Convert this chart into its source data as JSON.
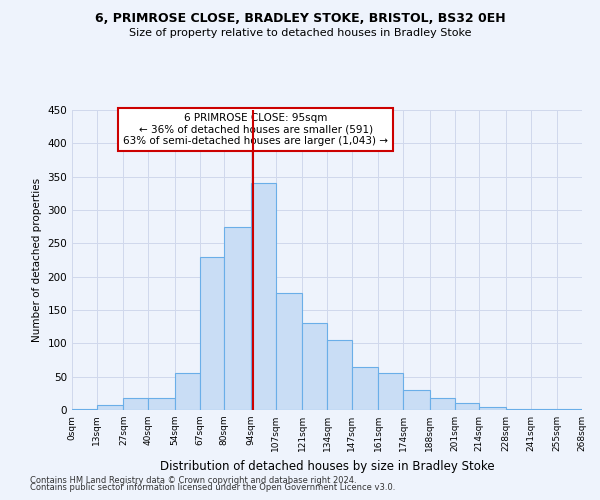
{
  "title1": "6, PRIMROSE CLOSE, BRADLEY STOKE, BRISTOL, BS32 0EH",
  "title2": "Size of property relative to detached houses in Bradley Stoke",
  "xlabel": "Distribution of detached houses by size in Bradley Stoke",
  "ylabel": "Number of detached properties",
  "bins": [
    0,
    13,
    27,
    40,
    54,
    67,
    80,
    94,
    107,
    121,
    134,
    147,
    161,
    174,
    188,
    201,
    214,
    228,
    241,
    255,
    268
  ],
  "bin_labels": [
    "0sqm",
    "13sqm",
    "27sqm",
    "40sqm",
    "54sqm",
    "67sqm",
    "80sqm",
    "94sqm",
    "107sqm",
    "121sqm",
    "134sqm",
    "147sqm",
    "161sqm",
    "174sqm",
    "188sqm",
    "201sqm",
    "214sqm",
    "228sqm",
    "241sqm",
    "255sqm",
    "268sqm"
  ],
  "counts": [
    2,
    8,
    18,
    18,
    55,
    230,
    275,
    340,
    175,
    130,
    105,
    65,
    55,
    30,
    18,
    10,
    5,
    2,
    2,
    2
  ],
  "bar_color": "#c9ddf5",
  "bar_edge_color": "#6aaee8",
  "property_sqm": 95,
  "vline_color": "#cc0000",
  "annotation_text": "6 PRIMROSE CLOSE: 95sqm\n← 36% of detached houses are smaller (591)\n63% of semi-detached houses are larger (1,043) →",
  "annotation_box_color": "#ffffff",
  "annotation_box_edge": "#cc0000",
  "footer1": "Contains HM Land Registry data © Crown copyright and database right 2024.",
  "footer2": "Contains public sector information licensed under the Open Government Licence v3.0.",
  "yticks": [
    0,
    50,
    100,
    150,
    200,
    250,
    300,
    350,
    400,
    450
  ],
  "ylim": [
    0,
    450
  ],
  "background_color": "#eef3fc",
  "grid_color": "#d0d8ec"
}
